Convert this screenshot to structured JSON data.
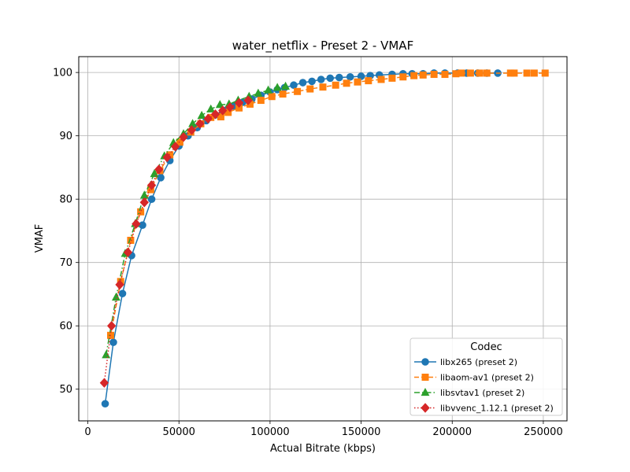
{
  "chart_data": {
    "type": "line",
    "title": "water_netflix - Preset 2 - VMAF",
    "xlabel": "Actual Bitrate (kbps)",
    "ylabel": "VMAF",
    "xlim": [
      -5000,
      263000
    ],
    "ylim": [
      45,
      102.5
    ],
    "xticks": [
      0,
      50000,
      100000,
      150000,
      200000,
      250000
    ],
    "yticks": [
      50,
      60,
      70,
      80,
      90,
      100
    ],
    "grid": true,
    "legend": {
      "title": "Codec",
      "placement": "lower-right"
    },
    "series": [
      {
        "name": "libx265 (preset 2)",
        "color": "#1f77b4",
        "marker": "circle",
        "line": "solid",
        "points": [
          [
            9500,
            47.7
          ],
          [
            14000,
            57.4
          ],
          [
            19000,
            65.1
          ],
          [
            24000,
            71.1
          ],
          [
            30000,
            75.9
          ],
          [
            35000,
            80.0
          ],
          [
            40000,
            83.4
          ],
          [
            45000,
            86.1
          ],
          [
            50000,
            88.4
          ],
          [
            55000,
            90.0
          ],
          [
            60000,
            91.3
          ],
          [
            65000,
            92.4
          ],
          [
            70000,
            93.3
          ],
          [
            75000,
            94.0
          ],
          [
            80000,
            94.7
          ],
          [
            85000,
            95.3
          ],
          [
            90000,
            95.8
          ],
          [
            95000,
            96.4
          ],
          [
            100000,
            96.9
          ],
          [
            104000,
            97.3
          ],
          [
            108000,
            97.6
          ],
          [
            113000,
            98.0
          ],
          [
            118000,
            98.4
          ],
          [
            123000,
            98.6
          ],
          [
            128000,
            98.9
          ],
          [
            133000,
            99.1
          ],
          [
            138000,
            99.2
          ],
          [
            144000,
            99.3
          ],
          [
            150000,
            99.4
          ],
          [
            155000,
            99.5
          ],
          [
            160000,
            99.6
          ],
          [
            167000,
            99.7
          ],
          [
            173000,
            99.8
          ],
          [
            178000,
            99.8
          ],
          [
            184000,
            99.8
          ],
          [
            190000,
            99.9
          ],
          [
            196000,
            99.9
          ],
          [
            203000,
            99.9
          ],
          [
            208000,
            99.9
          ],
          [
            214000,
            99.9
          ],
          [
            219000,
            99.9
          ],
          [
            225000,
            99.9
          ]
        ]
      },
      {
        "name": "libaom-av1 (preset 2)",
        "color": "#ff7f0e",
        "marker": "square",
        "line": "dashed",
        "points": [
          [
            12500,
            58.5
          ],
          [
            18000,
            67.0
          ],
          [
            23500,
            73.5
          ],
          [
            29000,
            78.0
          ],
          [
            34500,
            81.5
          ],
          [
            39500,
            84.5
          ],
          [
            45000,
            87.0
          ],
          [
            50500,
            89.0
          ],
          [
            56500,
            90.6
          ],
          [
            62000,
            91.9
          ],
          [
            67500,
            92.9
          ],
          [
            73000,
            93.0
          ],
          [
            77000,
            93.7
          ],
          [
            83000,
            94.4
          ],
          [
            89000,
            95.0
          ],
          [
            95000,
            95.6
          ],
          [
            101000,
            96.2
          ],
          [
            107000,
            96.6
          ],
          [
            115000,
            97.0
          ],
          [
            122000,
            97.4
          ],
          [
            129000,
            97.7
          ],
          [
            136000,
            98.0
          ],
          [
            142000,
            98.3
          ],
          [
            148000,
            98.5
          ],
          [
            154000,
            98.7
          ],
          [
            161000,
            98.9
          ],
          [
            167000,
            99.1
          ],
          [
            173000,
            99.3
          ],
          [
            179000,
            99.5
          ],
          [
            184000,
            99.6
          ],
          [
            190000,
            99.7
          ],
          [
            196000,
            99.7
          ],
          [
            202000,
            99.8
          ],
          [
            205000,
            99.9
          ],
          [
            210000,
            99.9
          ],
          [
            215000,
            99.9
          ],
          [
            219000,
            99.9
          ],
          [
            232000,
            99.9
          ],
          [
            234000,
            99.9
          ],
          [
            241000,
            99.9
          ],
          [
            245000,
            99.9
          ],
          [
            251000,
            99.9
          ]
        ]
      },
      {
        "name": "libsvtav1 (preset 2)",
        "color": "#2ca02c",
        "marker": "triangle",
        "line": "dashdot",
        "points": [
          [
            10000,
            55.4
          ],
          [
            15500,
            64.5
          ],
          [
            20500,
            71.4
          ],
          [
            26000,
            76.1
          ],
          [
            31000,
            80.6
          ],
          [
            36500,
            84.0
          ],
          [
            42000,
            86.8
          ],
          [
            47000,
            88.9
          ],
          [
            52500,
            90.3
          ],
          [
            57500,
            91.9
          ],
          [
            62500,
            93.2
          ],
          [
            67500,
            94.2
          ],
          [
            72500,
            94.9
          ],
          [
            77500,
            95.0
          ],
          [
            82500,
            95.6
          ],
          [
            88500,
            96.2
          ],
          [
            93500,
            96.7
          ],
          [
            99000,
            97.2
          ],
          [
            104000,
            97.6
          ],
          [
            108500,
            97.8
          ]
        ]
      },
      {
        "name": "libvvenc_1.12.1 (preset 2)",
        "color": "#d62728",
        "marker": "diamond",
        "line": "dotted",
        "points": [
          [
            9000,
            51.0
          ],
          [
            13000,
            60.0
          ],
          [
            17500,
            66.5
          ],
          [
            22000,
            71.6
          ],
          [
            26500,
            76.1
          ],
          [
            31000,
            79.5
          ],
          [
            35000,
            82.2
          ],
          [
            39000,
            84.7
          ],
          [
            43500,
            86.6
          ],
          [
            48000,
            88.3
          ],
          [
            52500,
            89.8
          ],
          [
            57000,
            90.9
          ],
          [
            61500,
            91.9
          ],
          [
            66000,
            92.7
          ],
          [
            70000,
            93.4
          ],
          [
            74000,
            94.0
          ],
          [
            78000,
            94.5
          ],
          [
            83000,
            95.2
          ],
          [
            88000,
            95.6
          ]
        ]
      }
    ]
  }
}
